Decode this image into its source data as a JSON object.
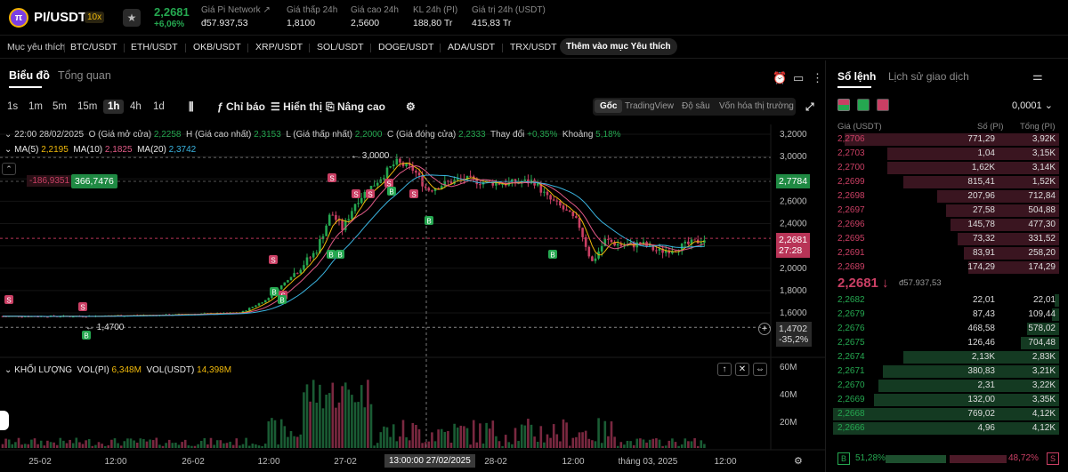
{
  "header": {
    "pair": "PI/USDT",
    "leverage": "10x",
    "last_price": "2,2681",
    "change_pct": "+6,06%",
    "stats": [
      {
        "label": "Giá Pi Network ↗",
        "value": "đ57.937,53"
      },
      {
        "label": "Giá thấp 24h",
        "value": "1,8100"
      },
      {
        "label": "Giá cao 24h",
        "value": "2,5600"
      },
      {
        "label": "KL 24h (PI)",
        "value": "188,80 Tr"
      },
      {
        "label": "Giá trị 24h (USDT)",
        "value": "415,83 Tr"
      }
    ]
  },
  "favorites": {
    "label": "Mục yêu thích",
    "items": [
      "BTC/USDT",
      "ETH/USDT",
      "OKB/USDT",
      "XRP/USDT",
      "SOL/USDT",
      "DOGE/USDT",
      "ADA/USDT",
      "TRX/USDT"
    ],
    "add_label": "Thêm vào mục Yêu thích"
  },
  "chart_panel": {
    "tabs": [
      "Biểu đồ",
      "Tổng quan"
    ],
    "timeframes": [
      "1s",
      "1m",
      "5m",
      "15m",
      "1h",
      "4h",
      "1d"
    ],
    "active_timeframe": "1h",
    "tools": [
      "Chỉ báo",
      "Hiển thị",
      "Nâng cao"
    ],
    "modes": [
      "Gốc",
      "TradingView",
      "Độ sâu",
      "Vốn hóa thị trường"
    ],
    "active_mode": "Gốc"
  },
  "ohlc": {
    "time": "22:00 28/02/2025",
    "open_label": "O (Giá mở cửa)",
    "open": "2,2258",
    "high_label": "H (Giá cao nhất)",
    "high": "2,3153",
    "low_label": "L (Giá thấp nhất)",
    "low": "2,2000",
    "close_label": "C (Giá đóng cửa)",
    "close": "2,2333",
    "change_label": "Thay đổi",
    "change": "+0,35%",
    "range_label": "Khoảng",
    "range": "5,18%"
  },
  "ma": {
    "ma5_label": "MA(5)",
    "ma5": "2,2195",
    "ma10_label": "MA(10)",
    "ma10": "2,1825",
    "ma20_label": "MA(20)",
    "ma20": "2,3742"
  },
  "chart_labels": {
    "ruler_neg": "-186,9351",
    "ruler_pos": "366,7476",
    "high_marker": "3,0000",
    "low_marker": "1,4700",
    "tag_2778": "2,7784",
    "tag_last": "2,2681",
    "tag_countdown": "27:28",
    "tag_1470": "1,4702",
    "tag_pct": "-35,2%",
    "crosshair_time": "13:00:00 27/02/2025"
  },
  "volume": {
    "title": "KHỐI LƯỢNG",
    "vol_pi_label": "VOL(PI)",
    "vol_pi": "6,348M",
    "vol_usdt_label": "VOL(USDT)",
    "vol_usdt": "14,398M"
  },
  "chart_data": {
    "type": "candlestick",
    "price_axis_ticks": [
      "3,2000",
      "3,0000",
      "2,8000",
      "2,6000",
      "2,4000",
      "2,2000",
      "2,0000",
      "1,8000",
      "1,6000"
    ],
    "volume_axis_ticks": [
      "60M",
      "40M",
      "20M"
    ],
    "time_axis_ticks": [
      "25-02",
      "12:00",
      "26-02",
      "12:00",
      "27-02",
      "28-02",
      "12:00",
      "tháng 03, 2025",
      "12:00"
    ],
    "series_moving_averages": [
      "MA(5)",
      "MA(10)",
      "MA(20)"
    ],
    "colors": {
      "up": "#25a750",
      "down": "#ca3f64",
      "ma5": "#f0b90b",
      "ma10": "#e05a86",
      "ma20": "#3ab4e0"
    }
  },
  "orderbook": {
    "tabs": [
      "Sổ lệnh",
      "Lịch sử giao dịch"
    ],
    "tick_size": "0,0001",
    "headers": [
      "Giá (USDT)",
      "Số (PI)",
      "Tổng (PI)"
    ],
    "asks": [
      {
        "p": "2,2706",
        "a": "771,29",
        "t": "3,92K",
        "d": 0.95
      },
      {
        "p": "2,2703",
        "a": "1,04",
        "t": "3,15K",
        "d": 0.76
      },
      {
        "p": "2,2700",
        "a": "1,62K",
        "t": "3,14K",
        "d": 0.76
      },
      {
        "p": "2,2699",
        "a": "815,41",
        "t": "1,52K",
        "d": 0.69
      },
      {
        "p": "2,2698",
        "a": "207,96",
        "t": "712,84",
        "d": 0.54
      },
      {
        "p": "2,2697",
        "a": "27,58",
        "t": "504,88",
        "d": 0.5
      },
      {
        "p": "2,2696",
        "a": "145,78",
        "t": "477,30",
        "d": 0.48
      },
      {
        "p": "2,2695",
        "a": "73,32",
        "t": "331,52",
        "d": 0.45
      },
      {
        "p": "2,2691",
        "a": "83,91",
        "t": "258,20",
        "d": 0.42
      },
      {
        "p": "2,2689",
        "a": "174,29",
        "t": "174,29",
        "d": 0.4
      }
    ],
    "mid_price": "2,2681",
    "mid_fiat": "đ57.937,53",
    "bids": [
      {
        "p": "2,2682",
        "a": "22,01",
        "t": "22,01",
        "d": 0.02
      },
      {
        "p": "2,2679",
        "a": "87,43",
        "t": "109,44",
        "d": 0.03
      },
      {
        "p": "2,2676",
        "a": "468,58",
        "t": "578,02",
        "d": 0.14
      },
      {
        "p": "2,2675",
        "a": "126,46",
        "t": "704,48",
        "d": 0.17
      },
      {
        "p": "2,2674",
        "a": "2,13K",
        "t": "2,83K",
        "d": 0.69
      },
      {
        "p": "2,2671",
        "a": "380,83",
        "t": "3,21K",
        "d": 0.78
      },
      {
        "p": "2,2670",
        "a": "2,31",
        "t": "3,22K",
        "d": 0.8
      },
      {
        "p": "2,2669",
        "a": "132,00",
        "t": "3,35K",
        "d": 0.82
      },
      {
        "p": "2,2668",
        "a": "769,02",
        "t": "4,12K",
        "d": 1.0
      },
      {
        "p": "2,2666",
        "a": "4,96",
        "t": "4,12K",
        "d": 1.0
      }
    ],
    "buy_ratio_label": "B",
    "buy_ratio": "51,28%",
    "sell_ratio": "48,72%",
    "sell_ratio_label": "S"
  }
}
